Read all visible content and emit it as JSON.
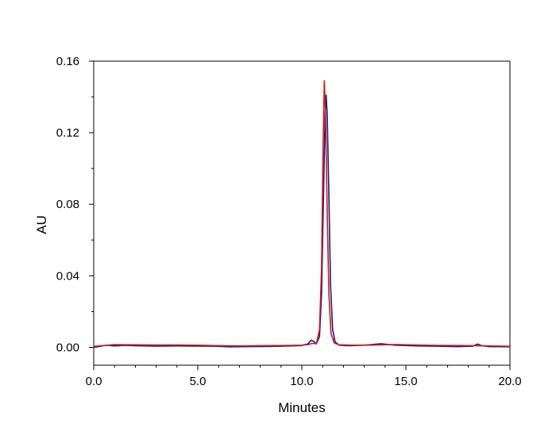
{
  "chart_data": {
    "type": "line",
    "title": "",
    "xlabel": "Minutes",
    "ylabel": "AU",
    "xlim": [
      0,
      20
    ],
    "ylim": [
      -0.01,
      0.16
    ],
    "x_ticks": [
      {
        "value": 0,
        "label": "0.0"
      },
      {
        "value": 5,
        "label": "5.0"
      },
      {
        "value": 10,
        "label": "10.0"
      },
      {
        "value": 15,
        "label": "15.0"
      },
      {
        "value": 20,
        "label": "20.0"
      }
    ],
    "y_ticks": [
      {
        "value": 0,
        "label": "0.00"
      },
      {
        "value": 0.04,
        "label": "0.04"
      },
      {
        "value": 0.08,
        "label": "0.08"
      },
      {
        "value": 0.12,
        "label": "0.12"
      },
      {
        "value": 0.16,
        "label": "0.16"
      }
    ],
    "grid": false,
    "legend": "none",
    "series": [
      {
        "color": "#1a1a8c",
        "points": [
          [
            0.0,
            0.0
          ],
          [
            0.3,
            0.0005
          ],
          [
            0.6,
            0.0012
          ],
          [
            1.0,
            0.0008
          ],
          [
            1.5,
            0.0011
          ],
          [
            2.0,
            0.0009
          ],
          [
            3.0,
            0.0007
          ],
          [
            4.0,
            0.0008
          ],
          [
            5.0,
            0.0007
          ],
          [
            5.8,
            0.0006
          ],
          [
            6.5,
            0.0003
          ],
          [
            7.5,
            0.0004
          ],
          [
            8.5,
            0.0005
          ],
          [
            9.5,
            0.0008
          ],
          [
            10.0,
            0.001
          ],
          [
            10.3,
            0.002
          ],
          [
            10.45,
            0.004
          ],
          [
            10.55,
            0.0035
          ],
          [
            10.7,
            0.002
          ],
          [
            10.85,
            0.006
          ],
          [
            10.95,
            0.03
          ],
          [
            11.05,
            0.09
          ],
          [
            11.12,
            0.13
          ],
          [
            11.17,
            0.141
          ],
          [
            11.22,
            0.13
          ],
          [
            11.3,
            0.085
          ],
          [
            11.38,
            0.035
          ],
          [
            11.48,
            0.01
          ],
          [
            11.6,
            0.003
          ],
          [
            11.8,
            0.0012
          ],
          [
            12.2,
            0.0009
          ],
          [
            13.0,
            0.0012
          ],
          [
            13.8,
            0.002
          ],
          [
            14.5,
            0.0012
          ],
          [
            15.5,
            0.0008
          ],
          [
            16.5,
            0.0006
          ],
          [
            17.5,
            0.0004
          ],
          [
            18.2,
            0.0006
          ],
          [
            18.45,
            0.0018
          ],
          [
            18.65,
            0.0009
          ],
          [
            19.0,
            0.0004
          ],
          [
            20.0,
            0.0003
          ]
        ]
      },
      {
        "color": "#cc1a14",
        "points": [
          [
            0.0,
            0.0005
          ],
          [
            0.5,
            0.001
          ],
          [
            1.0,
            0.0015
          ],
          [
            2.0,
            0.0014
          ],
          [
            3.0,
            0.0013
          ],
          [
            4.0,
            0.0013
          ],
          [
            5.0,
            0.0012
          ],
          [
            6.0,
            0.0009
          ],
          [
            7.0,
            0.0008
          ],
          [
            8.0,
            0.0009
          ],
          [
            9.0,
            0.001
          ],
          [
            10.0,
            0.0012
          ],
          [
            10.3,
            0.0015
          ],
          [
            10.5,
            0.0022
          ],
          [
            10.7,
            0.002
          ],
          [
            10.85,
            0.01
          ],
          [
            10.95,
            0.045
          ],
          [
            11.02,
            0.11
          ],
          [
            11.08,
            0.149
          ],
          [
            11.14,
            0.13
          ],
          [
            11.22,
            0.075
          ],
          [
            11.3,
            0.03
          ],
          [
            11.4,
            0.008
          ],
          [
            11.55,
            0.0025
          ],
          [
            11.8,
            0.0014
          ],
          [
            12.5,
            0.0012
          ],
          [
            13.5,
            0.0013
          ],
          [
            14.5,
            0.0016
          ],
          [
            15.5,
            0.0013
          ],
          [
            16.5,
            0.0011
          ],
          [
            17.5,
            0.001
          ],
          [
            18.5,
            0.0009
          ],
          [
            19.0,
            0.0008
          ],
          [
            20.0,
            0.0006
          ]
        ]
      }
    ]
  }
}
